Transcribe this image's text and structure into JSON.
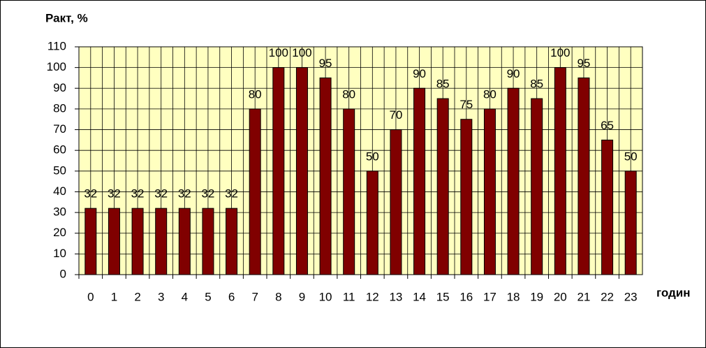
{
  "chart_data": {
    "type": "bar",
    "y_label": "Ракт, %",
    "x_label": "годин",
    "categories": [
      "0",
      "1",
      "2",
      "3",
      "4",
      "5",
      "6",
      "7",
      "8",
      "9",
      "10",
      "11",
      "12",
      "13",
      "14",
      "15",
      "16",
      "17",
      "18",
      "19",
      "20",
      "21",
      "22",
      "23"
    ],
    "values": [
      32,
      32,
      32,
      32,
      32,
      32,
      32,
      80,
      100,
      100,
      95,
      80,
      50,
      70,
      90,
      85,
      75,
      80,
      90,
      85,
      100,
      95,
      65,
      50
    ],
    "color": "#800000",
    "plot_background": "#ffffc0",
    "ylim": [
      0,
      110
    ],
    "yticks": [
      0,
      10,
      20,
      30,
      40,
      50,
      60,
      70,
      80,
      90,
      100,
      110
    ],
    "grid": true,
    "data_labels": true
  }
}
